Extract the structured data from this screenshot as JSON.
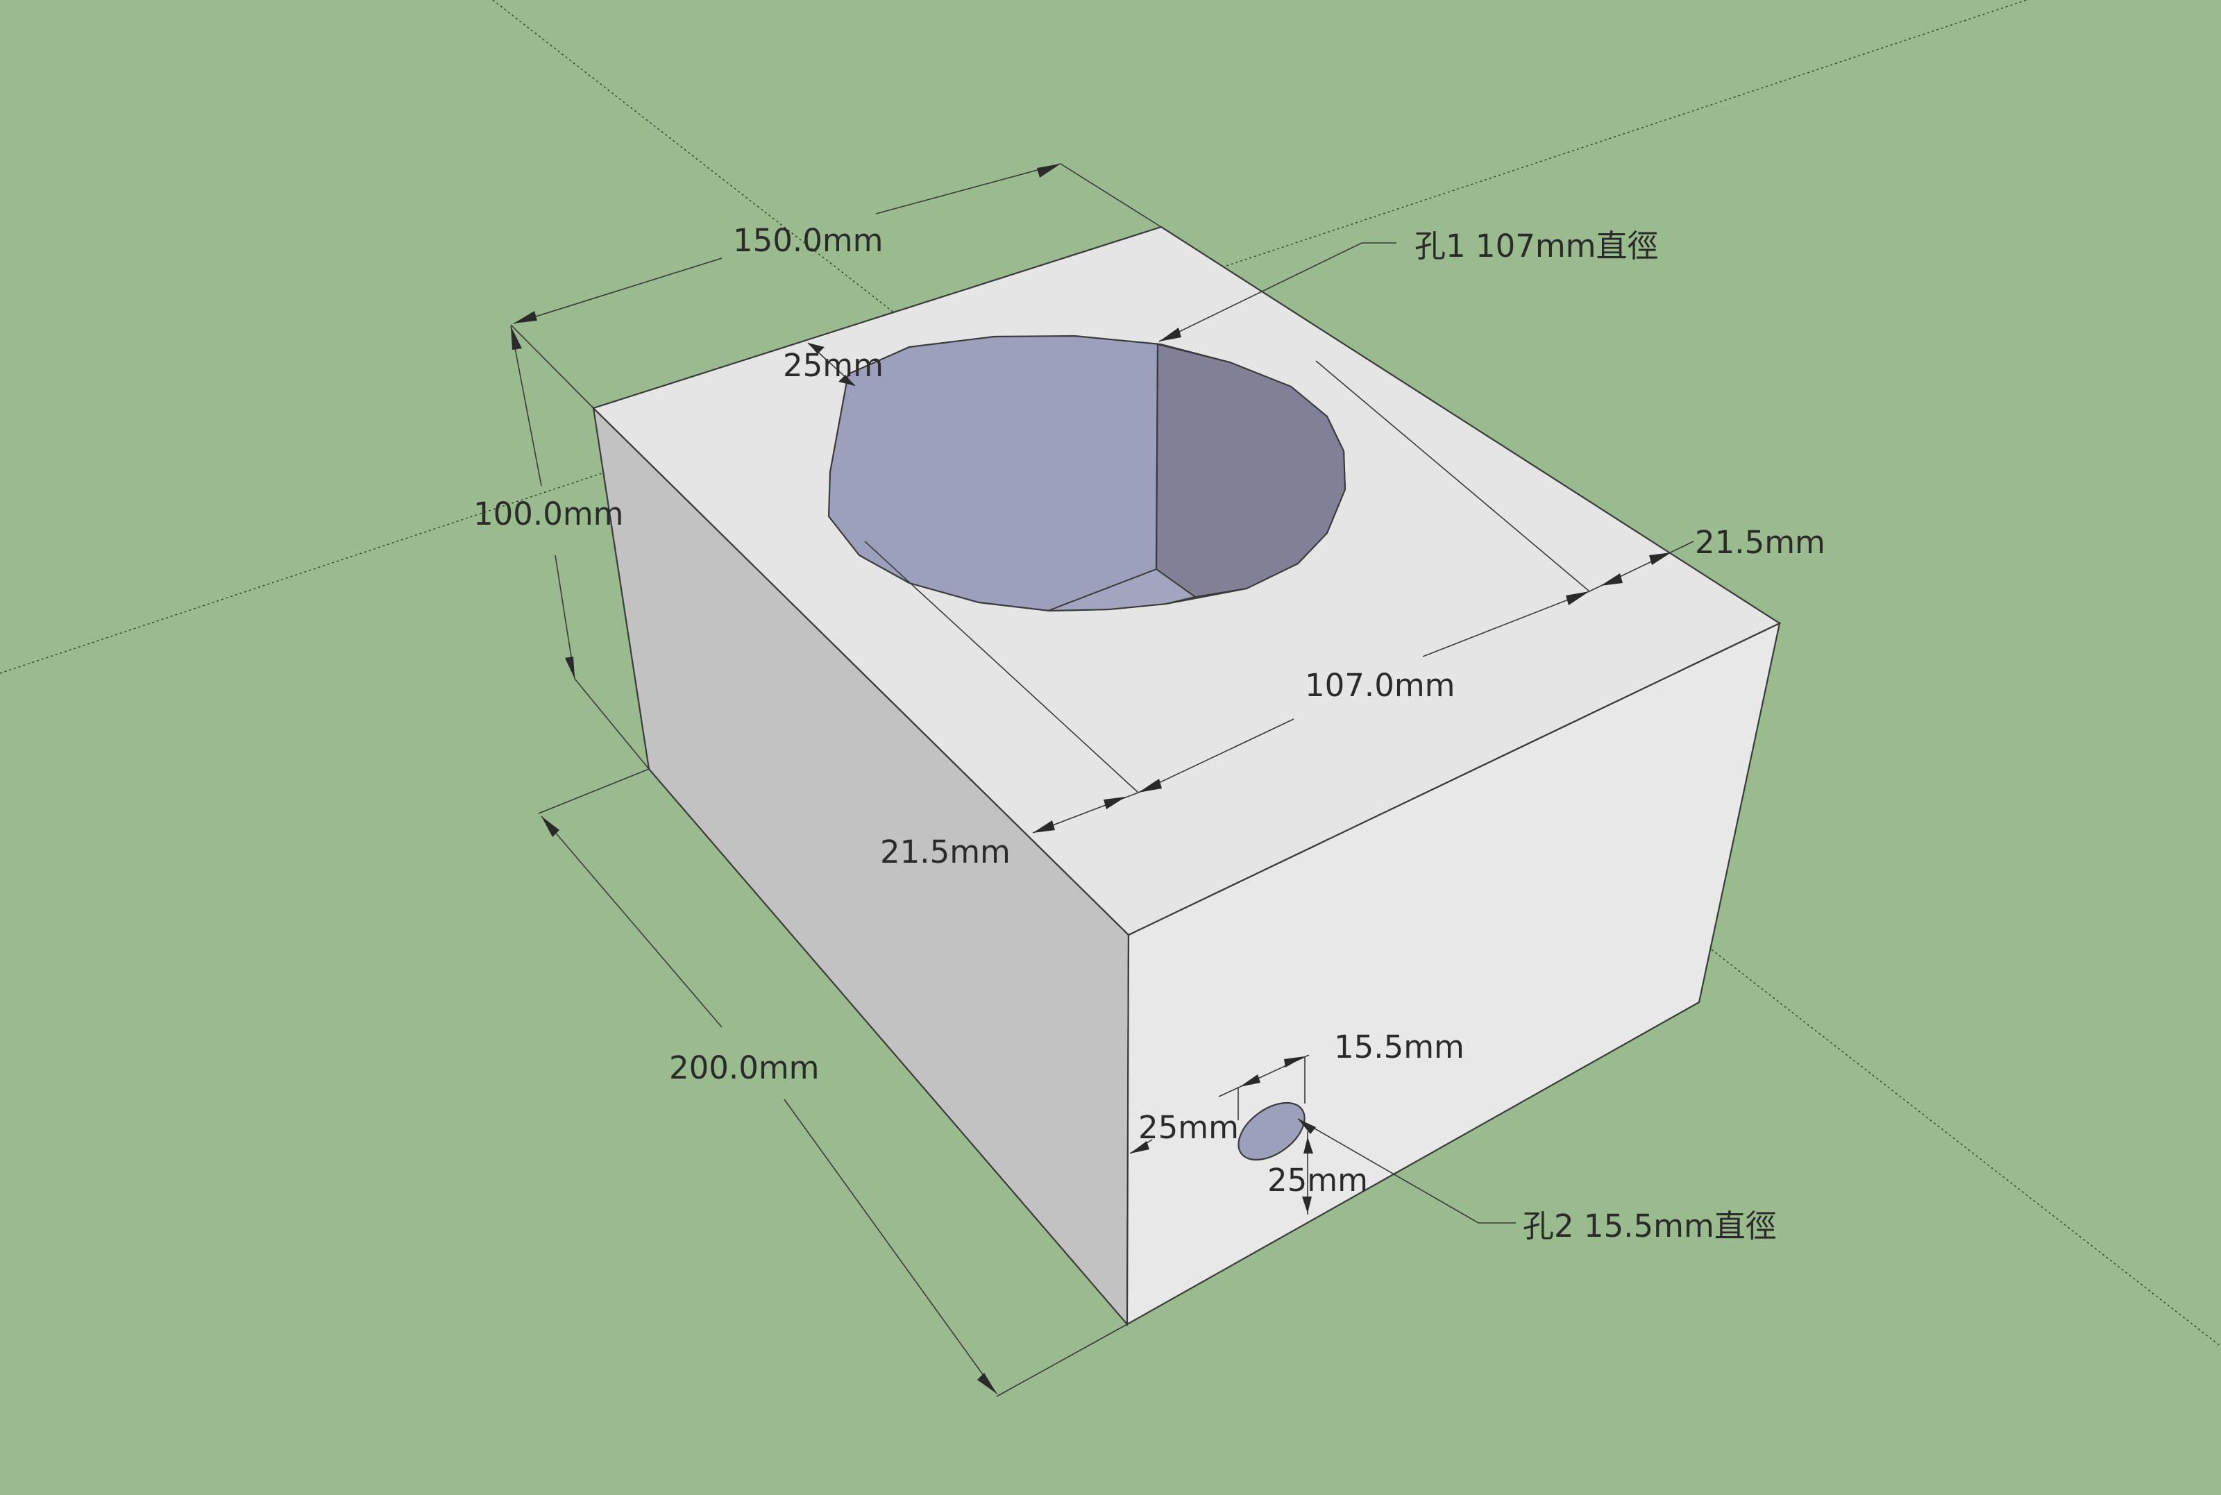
{
  "viewport": {
    "background": "#9abb8e"
  },
  "model": {
    "top_face_color": "#e5e5e5",
    "left_face_color": "#c2c2c2",
    "front_face_color": "#e8e8e8",
    "hole_color": "#9da0bc",
    "hole_shadow_color": "#808096",
    "hole_bottom_color": "#a3a5c0"
  },
  "dimensions": {
    "width_top": "150.0mm",
    "height": "100.0mm",
    "depth": "200.0mm",
    "hole1_offset": "25mm",
    "hole1_diameter": "107.0mm",
    "margin_left": "21.5mm",
    "margin_right": "21.5mm",
    "hole2_diameter": "15.5mm",
    "hole2_offset_x": "25mm",
    "hole2_offset_y": "25mm"
  },
  "callouts": {
    "hole1": "孔1 107mm直徑",
    "hole2": "孔2 15.5mm直徑"
  }
}
